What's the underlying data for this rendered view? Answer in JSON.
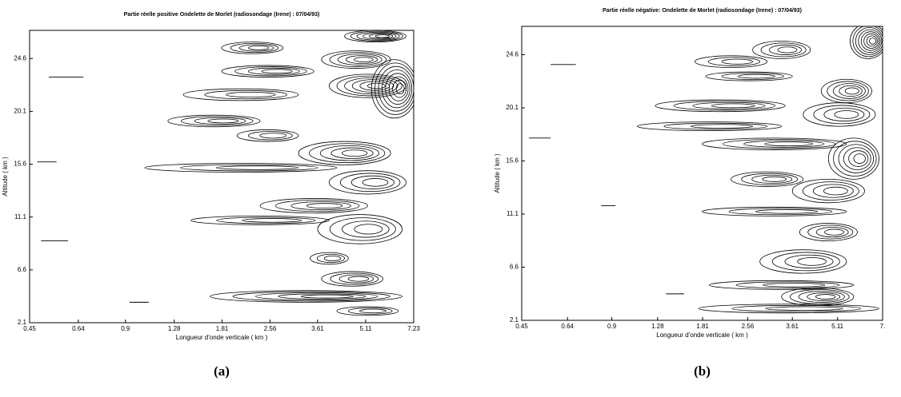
{
  "chart_data": [
    {
      "type": "contour",
      "title": "Partie réelle positive  Ondelette de Morlet  (radiosondage (Irene) : 07/04/93)",
      "x_label": "Longueur d'onde verticale ( km )",
      "y_label": "Altitude ( km )",
      "panel_label": "(a)",
      "x_scale": "log",
      "xlim": [
        0.45,
        7.23
      ],
      "xticks": [
        0.45,
        0.64,
        0.9,
        1.28,
        1.81,
        2.56,
        3.61,
        5.11,
        7.23
      ],
      "ylim": [
        2.1,
        27
      ],
      "yticks": [
        2.1,
        6.6,
        11.1,
        15.6,
        20.1,
        24.6
      ]
    },
    {
      "type": "contour",
      "title": "Partie réelle négative:  Ondelette de Morlet  (radiosondage (Irene) : 07/04/93)",
      "x_label": "Longueur d'onde verticale ( km )",
      "y_label": "Altitude ( km )",
      "panel_label": "(b)",
      "x_scale": "log",
      "xlim": [
        0.45,
        7.23
      ],
      "xticks": [
        0.45,
        0.64,
        0.9,
        1.28,
        1.81,
        2.56,
        3.61,
        5.11,
        {
          "value": 7.23,
          "label": "7."
        }
      ],
      "ylim": [
        2.1,
        27
      ],
      "yticks": [
        2.1,
        6.6,
        11.1,
        15.6,
        20.1,
        24.6
      ]
    }
  ]
}
